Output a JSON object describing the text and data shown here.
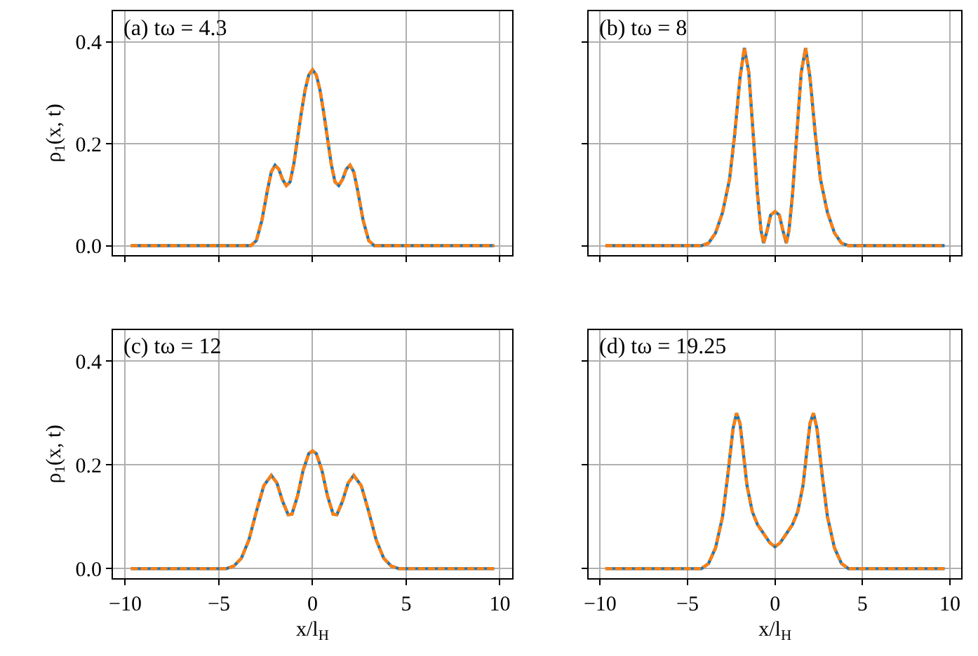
{
  "chart_data": [
    {
      "type": "line",
      "title": "(a) tω = 4.3",
      "ylabel": "ρ$_{1}$(x, t)",
      "tick_labels": "y",
      "grid": true,
      "xlim": [
        -10.65,
        10.65
      ],
      "ylim": [
        -0.018,
        0.46
      ],
      "xticks": [
        {
          "value": -10,
          "label": null
        },
        {
          "value": -5,
          "label": null
        },
        {
          "value": 0,
          "label": null
        },
        {
          "value": 5,
          "label": null
        },
        {
          "value": 10,
          "label": null
        }
      ],
      "yticks": [
        {
          "value": 0,
          "label": "0.0"
        },
        {
          "value": 0.2,
          "label": "0.2"
        },
        {
          "value": 0.4,
          "label": "0.4"
        }
      ],
      "x": [
        -9.7,
        -3.3,
        -3.0,
        -2.7,
        -2.4,
        -2.2,
        -2.0,
        -1.8,
        -1.6,
        -1.4,
        -1.2,
        -1.0,
        -0.8,
        -0.6,
        -0.4,
        -0.2,
        0,
        0.2,
        0.4,
        0.6,
        0.8,
        1.0,
        1.2,
        1.4,
        1.6,
        1.8,
        2.0,
        2.2,
        2.4,
        2.7,
        3.0,
        3.3,
        9.7
      ],
      "series": [
        {
          "color": "#1f77b4",
          "line_style": "solid",
          "values": [
            0,
            0,
            0.01,
            0.05,
            0.11,
            0.145,
            0.158,
            0.15,
            0.13,
            0.118,
            0.125,
            0.16,
            0.21,
            0.26,
            0.305,
            0.335,
            0.345,
            0.335,
            0.305,
            0.26,
            0.21,
            0.16,
            0.125,
            0.118,
            0.13,
            0.15,
            0.158,
            0.145,
            0.11,
            0.05,
            0.01,
            0,
            0
          ]
        },
        {
          "color": "#ff7f0e",
          "line_style": "dashed",
          "values": [
            0,
            0,
            0.01,
            0.05,
            0.11,
            0.145,
            0.158,
            0.15,
            0.13,
            0.118,
            0.125,
            0.16,
            0.21,
            0.26,
            0.305,
            0.335,
            0.345,
            0.335,
            0.305,
            0.26,
            0.21,
            0.16,
            0.125,
            0.118,
            0.13,
            0.15,
            0.158,
            0.145,
            0.11,
            0.05,
            0.01,
            0,
            0
          ]
        }
      ]
    },
    {
      "type": "line",
      "title": "(b) tω = 8",
      "tick_labels": false,
      "grid": true,
      "xlim": [
        -10.65,
        10.65
      ],
      "ylim": [
        -0.018,
        0.46
      ],
      "xticks": [
        {
          "value": -10,
          "label": null
        },
        {
          "value": -5,
          "label": null
        },
        {
          "value": 0,
          "label": null
        },
        {
          "value": 5,
          "label": null
        },
        {
          "value": 10,
          "label": null
        }
      ],
      "yticks": [
        {
          "value": 0,
          "label": null
        },
        {
          "value": 0.2,
          "label": null
        },
        {
          "value": 0.4,
          "label": null
        }
      ],
      "x": [
        -9.7,
        -4.2,
        -3.8,
        -3.4,
        -3.0,
        -2.6,
        -2.3,
        -2.0,
        -1.75,
        -1.5,
        -1.25,
        -1.0,
        -0.8,
        -0.65,
        -0.45,
        -0.25,
        0,
        0.25,
        0.45,
        0.65,
        0.8,
        1.0,
        1.25,
        1.5,
        1.75,
        2.0,
        2.3,
        2.6,
        3.0,
        3.4,
        3.8,
        4.2,
        9.7
      ],
      "series": [
        {
          "color": "#1f77b4",
          "line_style": "solid",
          "values": [
            0,
            0,
            0.005,
            0.025,
            0.065,
            0.13,
            0.22,
            0.33,
            0.388,
            0.34,
            0.22,
            0.1,
            0.03,
            0.005,
            0.03,
            0.06,
            0.067,
            0.06,
            0.03,
            0.005,
            0.03,
            0.1,
            0.22,
            0.34,
            0.388,
            0.33,
            0.22,
            0.13,
            0.065,
            0.025,
            0.005,
            0,
            0
          ]
        },
        {
          "color": "#ff7f0e",
          "line_style": "dashed",
          "values": [
            0,
            0,
            0.005,
            0.025,
            0.065,
            0.13,
            0.22,
            0.33,
            0.388,
            0.34,
            0.22,
            0.1,
            0.03,
            0.005,
            0.03,
            0.06,
            0.067,
            0.06,
            0.03,
            0.005,
            0.03,
            0.1,
            0.22,
            0.34,
            0.388,
            0.33,
            0.22,
            0.13,
            0.065,
            0.025,
            0.005,
            0,
            0
          ]
        }
      ]
    },
    {
      "type": "line",
      "title": "(c) tω = 12",
      "xlabel": "x/l$_{H}$",
      "ylabel": "ρ$_{1}$(x, t)",
      "grid": true,
      "xlim": [
        -10.65,
        10.65
      ],
      "ylim": [
        -0.018,
        0.46
      ],
      "xticks": [
        {
          "value": -10,
          "label": "−10"
        },
        {
          "value": -5,
          "label": "−5"
        },
        0,
        5,
        10
      ],
      "yticks": [
        {
          "value": 0,
          "label": "0.0"
        },
        {
          "value": 0.2,
          "label": "0.2"
        },
        {
          "value": 0.4,
          "label": "0.4"
        }
      ],
      "x": [
        -9.7,
        -4.6,
        -4.2,
        -3.8,
        -3.4,
        -3.0,
        -2.6,
        -2.2,
        -1.9,
        -1.6,
        -1.3,
        -1.1,
        -0.8,
        -0.5,
        -0.2,
        0,
        0.2,
        0.5,
        0.8,
        1.1,
        1.3,
        1.6,
        1.9,
        2.2,
        2.6,
        3.0,
        3.4,
        3.8,
        4.2,
        4.6,
        9.7
      ],
      "series": [
        {
          "color": "#1f77b4",
          "line_style": "solid",
          "values": [
            0,
            0,
            0.005,
            0.02,
            0.055,
            0.11,
            0.16,
            0.18,
            0.165,
            0.13,
            0.104,
            0.105,
            0.14,
            0.19,
            0.222,
            0.227,
            0.222,
            0.19,
            0.14,
            0.105,
            0.104,
            0.13,
            0.165,
            0.18,
            0.16,
            0.11,
            0.055,
            0.02,
            0.005,
            0,
            0
          ]
        },
        {
          "color": "#ff7f0e",
          "line_style": "dashed",
          "values": [
            0,
            0,
            0.005,
            0.02,
            0.055,
            0.11,
            0.16,
            0.18,
            0.165,
            0.13,
            0.104,
            0.105,
            0.14,
            0.19,
            0.222,
            0.227,
            0.222,
            0.19,
            0.14,
            0.105,
            0.104,
            0.13,
            0.165,
            0.18,
            0.16,
            0.11,
            0.055,
            0.02,
            0.005,
            0,
            0
          ]
        }
      ]
    },
    {
      "type": "line",
      "title": "(d) tω = 19.25",
      "xlabel": "x/l$_{H}$",
      "tick_labels": "x",
      "grid": true,
      "xlim": [
        -10.65,
        10.65
      ],
      "ylim": [
        -0.018,
        0.46
      ],
      "xticks": [
        {
          "value": -10,
          "label": "−10"
        },
        {
          "value": -5,
          "label": "−5"
        },
        0,
        5,
        10
      ],
      "yticks": [
        {
          "value": 0,
          "label": null
        },
        {
          "value": 0.2,
          "label": null
        },
        {
          "value": 0.4,
          "label": null
        }
      ],
      "x": [
        -9.7,
        -4.2,
        -3.8,
        -3.4,
        -3.0,
        -2.7,
        -2.4,
        -2.2,
        -2.0,
        -1.8,
        -1.6,
        -1.3,
        -1.0,
        -0.6,
        -0.3,
        0,
        0.3,
        0.6,
        1.0,
        1.3,
        1.6,
        1.8,
        2.0,
        2.2,
        2.4,
        2.7,
        3.0,
        3.4,
        3.8,
        4.2,
        9.7
      ],
      "series": [
        {
          "color": "#1f77b4",
          "line_style": "solid",
          "values": [
            0,
            0,
            0.01,
            0.04,
            0.1,
            0.18,
            0.27,
            0.3,
            0.28,
            0.22,
            0.16,
            0.11,
            0.085,
            0.065,
            0.05,
            0.042,
            0.05,
            0.065,
            0.085,
            0.11,
            0.16,
            0.22,
            0.28,
            0.3,
            0.27,
            0.18,
            0.1,
            0.04,
            0.01,
            0,
            0
          ]
        },
        {
          "color": "#ff7f0e",
          "line_style": "dashed",
          "values": [
            0,
            0,
            0.01,
            0.04,
            0.1,
            0.18,
            0.27,
            0.3,
            0.28,
            0.22,
            0.16,
            0.11,
            0.085,
            0.065,
            0.05,
            0.042,
            0.05,
            0.065,
            0.085,
            0.11,
            0.16,
            0.22,
            0.28,
            0.3,
            0.27,
            0.18,
            0.1,
            0.04,
            0.01,
            0,
            0
          ]
        }
      ]
    }
  ]
}
